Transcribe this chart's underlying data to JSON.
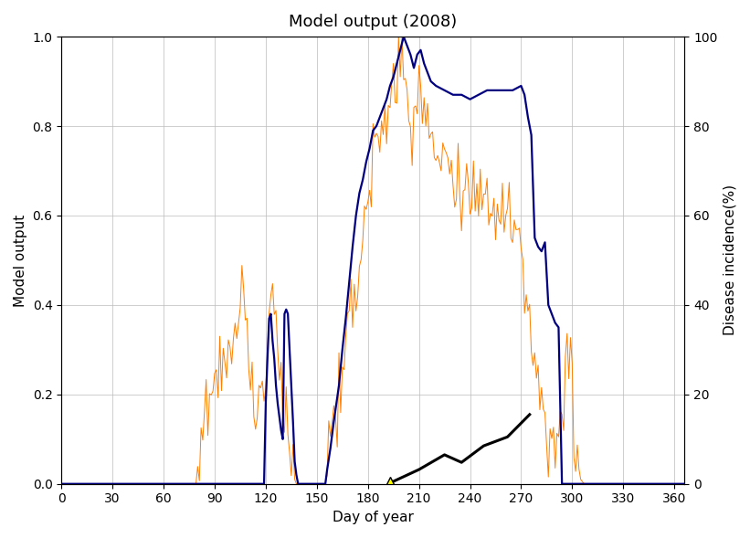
{
  "title": "Model output (2008)",
  "xlabel": "Day of year",
  "ylabel_left": "Model output",
  "ylabel_right": "Disease incidence(%)",
  "xlim": [
    0,
    366
  ],
  "ylim_left": [
    0,
    1.0
  ],
  "ylim_right": [
    0,
    100
  ],
  "xticks": [
    0,
    30,
    60,
    90,
    120,
    150,
    180,
    210,
    240,
    270,
    300,
    330,
    360
  ],
  "yticks_left": [
    0.0,
    0.2,
    0.4,
    0.6,
    0.8,
    1.0
  ],
  "yticks_right": [
    0,
    20,
    40,
    60,
    80,
    100
  ],
  "blue_color": "#000080",
  "orange_color": "#FF8000",
  "black_color": "#000000",
  "triangle_color": "#FFFF00",
  "bg_color": "#FFFFFF",
  "grid_color": "#BBBBBB",
  "blue_keypoints": [
    [
      0,
      0.0
    ],
    [
      119,
      0.0
    ],
    [
      120,
      0.18
    ],
    [
      121,
      0.28
    ],
    [
      122,
      0.37
    ],
    [
      123,
      0.38
    ],
    [
      124,
      0.32
    ],
    [
      125,
      0.28
    ],
    [
      126,
      0.22
    ],
    [
      127,
      0.18
    ],
    [
      128,
      0.15
    ],
    [
      129,
      0.12
    ],
    [
      130,
      0.1
    ],
    [
      131,
      0.38
    ],
    [
      132,
      0.39
    ],
    [
      133,
      0.38
    ],
    [
      134,
      0.3
    ],
    [
      135,
      0.22
    ],
    [
      136,
      0.14
    ],
    [
      137,
      0.05
    ],
    [
      138,
      0.02
    ],
    [
      139,
      0.0
    ],
    [
      155,
      0.0
    ],
    [
      156,
      0.03
    ],
    [
      158,
      0.08
    ],
    [
      160,
      0.14
    ],
    [
      163,
      0.22
    ],
    [
      165,
      0.3
    ],
    [
      167,
      0.37
    ],
    [
      169,
      0.45
    ],
    [
      171,
      0.53
    ],
    [
      173,
      0.6
    ],
    [
      175,
      0.65
    ],
    [
      177,
      0.68
    ],
    [
      179,
      0.72
    ],
    [
      181,
      0.75
    ],
    [
      183,
      0.79
    ],
    [
      185,
      0.8
    ],
    [
      187,
      0.82
    ],
    [
      189,
      0.84
    ],
    [
      191,
      0.86
    ],
    [
      193,
      0.89
    ],
    [
      195,
      0.91
    ],
    [
      197,
      0.94
    ],
    [
      199,
      0.97
    ],
    [
      201,
      1.0
    ],
    [
      203,
      0.98
    ],
    [
      205,
      0.96
    ],
    [
      207,
      0.93
    ],
    [
      209,
      0.96
    ],
    [
      211,
      0.97
    ],
    [
      213,
      0.94
    ],
    [
      215,
      0.92
    ],
    [
      217,
      0.9
    ],
    [
      220,
      0.89
    ],
    [
      225,
      0.88
    ],
    [
      230,
      0.87
    ],
    [
      235,
      0.87
    ],
    [
      240,
      0.86
    ],
    [
      245,
      0.87
    ],
    [
      250,
      0.88
    ],
    [
      255,
      0.88
    ],
    [
      260,
      0.88
    ],
    [
      265,
      0.88
    ],
    [
      270,
      0.89
    ],
    [
      272,
      0.87
    ],
    [
      274,
      0.82
    ],
    [
      276,
      0.78
    ],
    [
      278,
      0.55
    ],
    [
      280,
      0.53
    ],
    [
      282,
      0.52
    ],
    [
      284,
      0.54
    ],
    [
      286,
      0.4
    ],
    [
      288,
      0.38
    ],
    [
      290,
      0.36
    ],
    [
      292,
      0.35
    ],
    [
      294,
      0.0
    ],
    [
      366,
      0.0
    ]
  ],
  "orange_base_keypoints": [
    [
      0,
      0.0
    ],
    [
      79,
      0.0
    ],
    [
      82,
      0.08
    ],
    [
      85,
      0.15
    ],
    [
      88,
      0.19
    ],
    [
      92,
      0.22
    ],
    [
      95,
      0.26
    ],
    [
      100,
      0.32
    ],
    [
      103,
      0.36
    ],
    [
      106,
      0.44
    ],
    [
      108,
      0.38
    ],
    [
      110,
      0.28
    ],
    [
      112,
      0.2
    ],
    [
      114,
      0.15
    ],
    [
      116,
      0.19
    ],
    [
      118,
      0.25
    ],
    [
      120,
      0.3
    ],
    [
      122,
      0.38
    ],
    [
      124,
      0.44
    ],
    [
      126,
      0.36
    ],
    [
      128,
      0.25
    ],
    [
      130,
      0.18
    ],
    [
      132,
      0.12
    ],
    [
      134,
      0.06
    ],
    [
      136,
      0.02
    ],
    [
      138,
      0.0
    ],
    [
      155,
      0.0
    ],
    [
      158,
      0.1
    ],
    [
      162,
      0.18
    ],
    [
      165,
      0.22
    ],
    [
      168,
      0.3
    ],
    [
      170,
      0.37
    ],
    [
      172,
      0.42
    ],
    [
      174,
      0.48
    ],
    [
      176,
      0.55
    ],
    [
      178,
      0.6
    ],
    [
      180,
      0.65
    ],
    [
      182,
      0.68
    ],
    [
      184,
      0.74
    ],
    [
      186,
      0.77
    ],
    [
      188,
      0.81
    ],
    [
      190,
      0.82
    ],
    [
      192,
      0.8
    ],
    [
      194,
      0.83
    ],
    [
      196,
      0.88
    ],
    [
      198,
      0.91
    ],
    [
      200,
      0.95
    ],
    [
      202,
      0.93
    ],
    [
      204,
      0.87
    ],
    [
      206,
      0.82
    ],
    [
      208,
      0.86
    ],
    [
      210,
      0.88
    ],
    [
      212,
      0.84
    ],
    [
      214,
      0.8
    ],
    [
      216,
      0.78
    ],
    [
      218,
      0.75
    ],
    [
      222,
      0.74
    ],
    [
      226,
      0.72
    ],
    [
      230,
      0.7
    ],
    [
      234,
      0.68
    ],
    [
      238,
      0.67
    ],
    [
      242,
      0.66
    ],
    [
      246,
      0.65
    ],
    [
      250,
      0.64
    ],
    [
      254,
      0.62
    ],
    [
      258,
      0.61
    ],
    [
      262,
      0.6
    ],
    [
      265,
      0.58
    ],
    [
      268,
      0.55
    ],
    [
      271,
      0.5
    ],
    [
      273,
      0.44
    ],
    [
      275,
      0.39
    ],
    [
      277,
      0.34
    ],
    [
      279,
      0.28
    ],
    [
      281,
      0.22
    ],
    [
      283,
      0.18
    ],
    [
      285,
      0.14
    ],
    [
      287,
      0.1
    ],
    [
      289,
      0.08
    ],
    [
      291,
      0.1
    ],
    [
      293,
      0.14
    ],
    [
      295,
      0.2
    ],
    [
      297,
      0.25
    ],
    [
      299,
      0.28
    ],
    [
      301,
      0.1
    ],
    [
      303,
      0.05
    ],
    [
      305,
      0.01
    ],
    [
      307,
      0.0
    ],
    [
      366,
      0.0
    ]
  ],
  "black_x": [
    193,
    210,
    225,
    235,
    248,
    262,
    275
  ],
  "black_y": [
    0.002,
    0.032,
    0.065,
    0.048,
    0.085,
    0.105,
    0.155
  ],
  "triangle_x": 193,
  "triangle_y": 0.002
}
